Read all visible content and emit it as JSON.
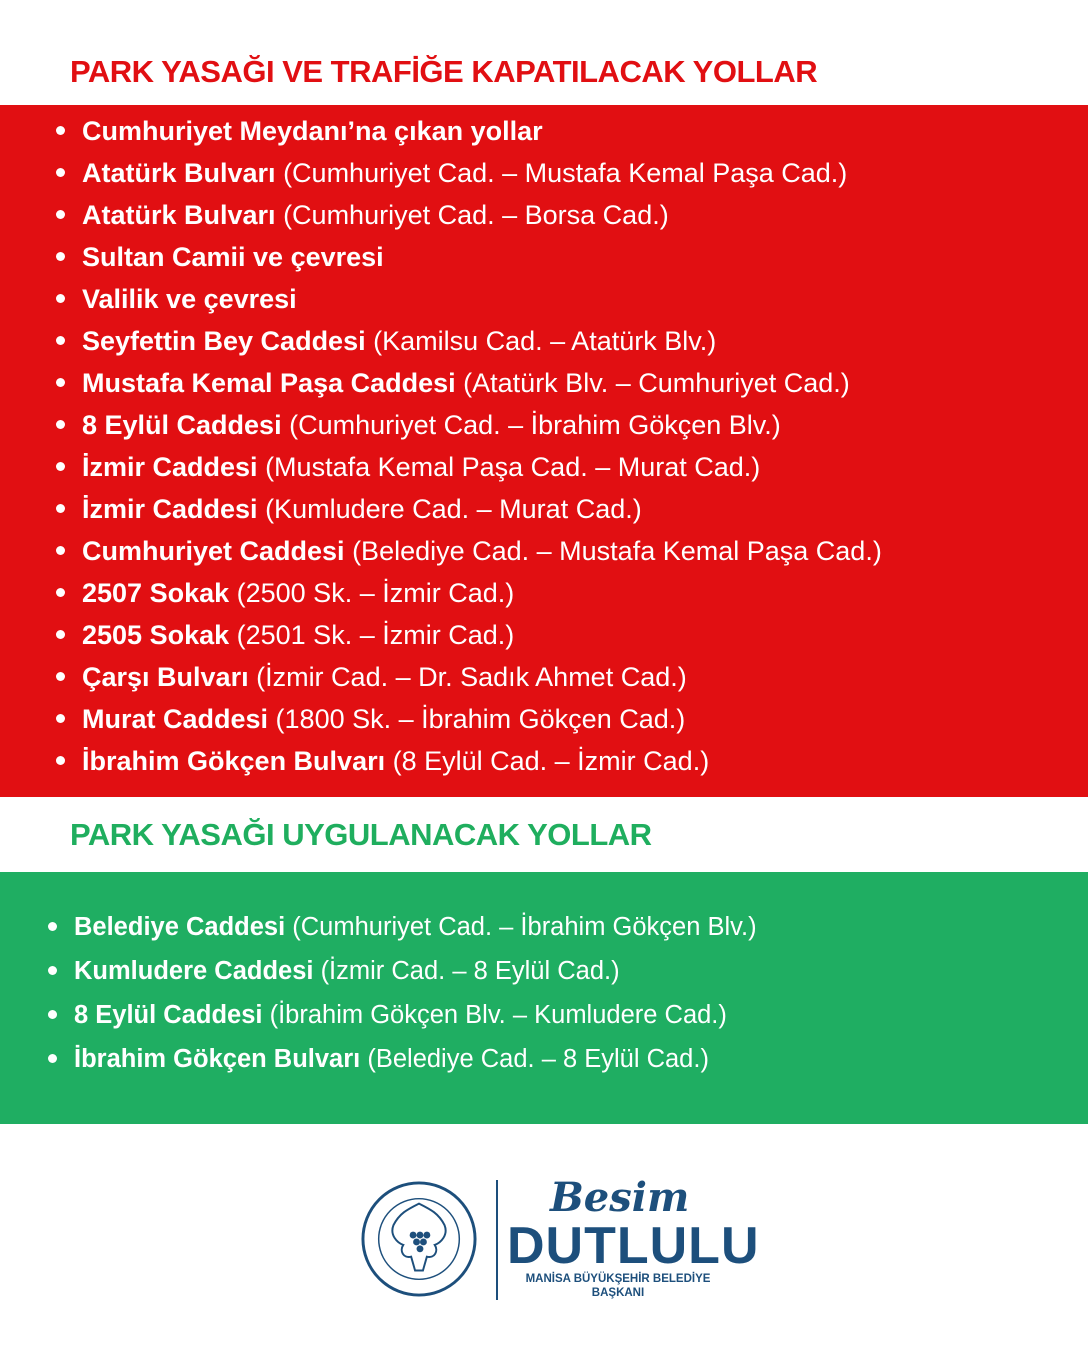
{
  "section1": {
    "title": "PARK YASAĞI VE TRAFİĞE KAPATILACAK YOLLAR",
    "items": [
      {
        "bold": "Cumhuriyet Meydanı’na çıkan yollar",
        "rest": ""
      },
      {
        "bold": "Atatürk Bulvarı",
        "rest": " (Cumhuriyet Cad. – Mustafa Kemal Paşa Cad.)"
      },
      {
        "bold": "Atatürk Bulvarı",
        "rest": " (Cumhuriyet Cad. – Borsa Cad.)"
      },
      {
        "bold": "Sultan Camii ve çevresi",
        "rest": ""
      },
      {
        "bold": "Valilik ve çevresi",
        "rest": ""
      },
      {
        "bold": "Seyfettin Bey Caddesi",
        "rest": " (Kamilsu Cad. – Atatürk Blv.)"
      },
      {
        "bold": "Mustafa Kemal Paşa Caddesi",
        "rest": " (Atatürk Blv. – Cumhuriyet Cad.)"
      },
      {
        "bold": "8 Eylül Caddesi",
        "rest": " (Cumhuriyet Cad. – İbrahim Gökçen Blv.)"
      },
      {
        "bold": "İzmir Caddesi",
        "rest": " (Mustafa Kemal Paşa Cad. – Murat Cad.)"
      },
      {
        "bold": "İzmir Caddesi",
        "rest": " (Kumludere Cad. – Murat Cad.)"
      },
      {
        "bold": "Cumhuriyet Caddesi",
        "rest": " (Belediye Cad. – Mustafa Kemal Paşa Cad.)"
      },
      {
        "bold": "2507 Sokak",
        "rest": " (2500 Sk. – İzmir Cad.)"
      },
      {
        "bold": "2505 Sokak",
        "rest": " (2501 Sk. – İzmir Cad.)"
      },
      {
        "bold": "Çarşı Bulvarı",
        "rest": " (İzmir Cad. – Dr. Sadık Ahmet Cad.)"
      },
      {
        "bold": "Murat Caddesi",
        "rest": " (1800 Sk. – İbrahim Gökçen Cad.)"
      },
      {
        "bold": "İbrahim Gökçen Bulvarı",
        "rest": " (8 Eylül Cad. – İzmir Cad.)"
      }
    ]
  },
  "section2": {
    "title": "PARK YASAĞI UYGULANACAK YOLLAR",
    "items": [
      {
        "bold": "Belediye Caddesi",
        "rest": " (Cumhuriyet Cad. – İbrahim Gökçen Blv.)"
      },
      {
        "bold": "Kumludere Caddesi",
        "rest": " (İzmir Cad. – 8 Eylül Cad.)"
      },
      {
        "bold": "8 Eylül Caddesi",
        "rest": " (İbrahim Gökçen Blv. – Kumludere Cad.)"
      },
      {
        "bold": "İbrahim Gökçen Bulvarı",
        "rest": " (Belediye Cad. – 8 Eylül Cad.)"
      }
    ]
  },
  "footer": {
    "seal_text": "MANİSA BÜYÜKŞEHİR BELEDİYESİ",
    "first_name": "Besim",
    "last_name": "DUTLULU",
    "role": "MANİSA BÜYÜKŞEHİR BELEDİYE BAŞKANI"
  },
  "colors": {
    "red": "#e10f12",
    "green": "#1fae62",
    "green_title": "#1fae5e",
    "navy": "#1d4f7c"
  }
}
